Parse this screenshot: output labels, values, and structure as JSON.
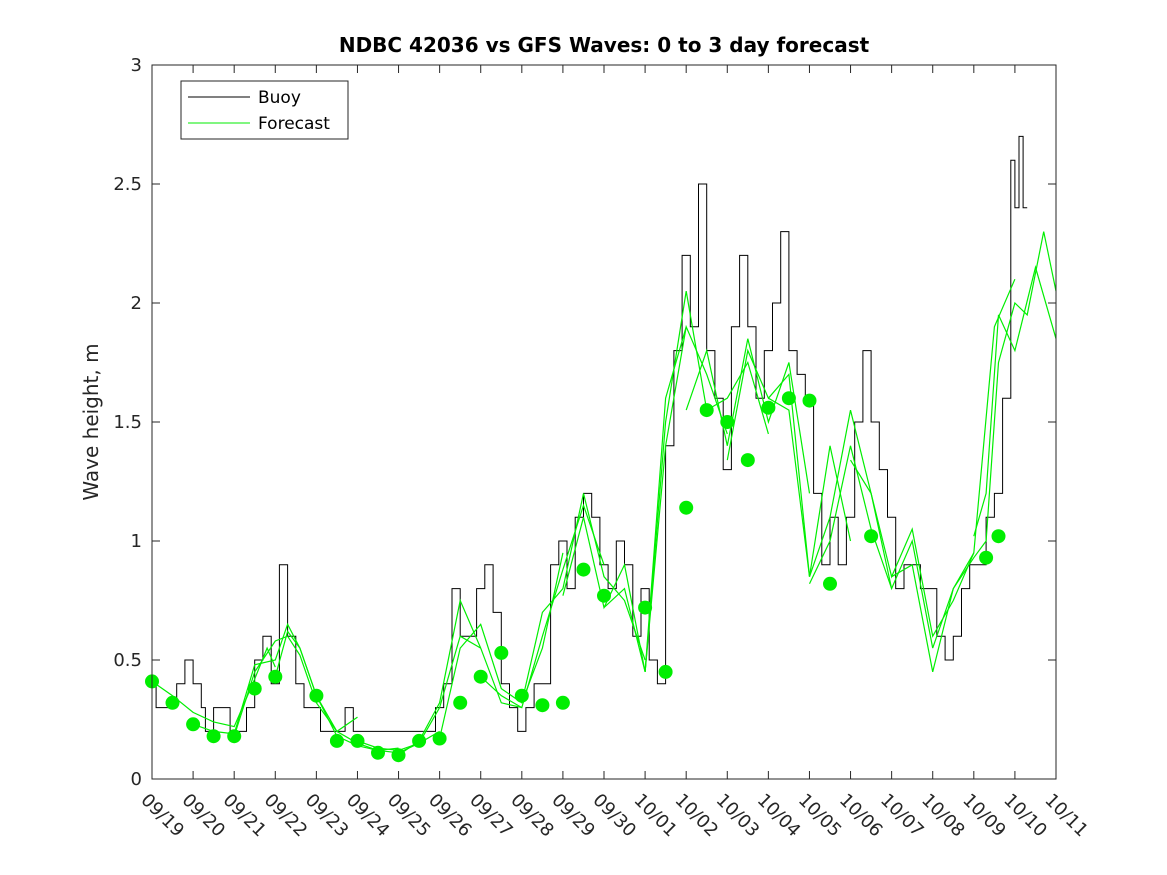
{
  "chart_data": {
    "type": "line",
    "title": "NDBC 42036 vs GFS Waves: 0 to 3 day forecast",
    "xlabel": "",
    "ylabel": "Wave height, m",
    "ylim": [
      0,
      3
    ],
    "yticks": [
      "0",
      "0.5",
      "1",
      "1.5",
      "2",
      "2.5",
      "3"
    ],
    "xlim_days": [
      0,
      22
    ],
    "xticks": [
      "09/19",
      "09/20",
      "09/21",
      "09/22",
      "09/23",
      "09/24",
      "09/25",
      "09/26",
      "09/27",
      "09/28",
      "09/29",
      "09/30",
      "10/01",
      "10/02",
      "10/03",
      "10/04",
      "10/05",
      "10/06",
      "10/07",
      "10/08",
      "10/09",
      "10/10",
      "10/11"
    ],
    "legend": {
      "position": "top-left",
      "buoy_label": "Buoy",
      "forecast_label": "Forecast"
    },
    "colors": {
      "buoy": "#000000",
      "forecast": "#00ee00",
      "analysis_marker": "#00ee00"
    },
    "buoy_series": {
      "name": "Buoy",
      "x": [
        0,
        0.1,
        0.4,
        0.6,
        0.8,
        1.0,
        1.2,
        1.3,
        1.5,
        1.7,
        1.9,
        2.1,
        2.3,
        2.5,
        2.7,
        2.9,
        3.1,
        3.3,
        3.5,
        3.7,
        3.9,
        4.1,
        4.3,
        4.5,
        4.7,
        4.9,
        5.1,
        5.3,
        5.5,
        5.7,
        5.9,
        6.1,
        6.3,
        6.5,
        6.7,
        6.9,
        7.1,
        7.3,
        7.5,
        7.7,
        7.9,
        8.1,
        8.3,
        8.5,
        8.7,
        8.9,
        9.1,
        9.3,
        9.5,
        9.7,
        9.9,
        10.1,
        10.3,
        10.5,
        10.7,
        10.9,
        11.1,
        11.3,
        11.5,
        11.7,
        11.9,
        12.1,
        12.3,
        12.5,
        12.7,
        12.9,
        13.1,
        13.3,
        13.5,
        13.7,
        13.9,
        14.1,
        14.3,
        14.5,
        14.7,
        14.9,
        15.1,
        15.3,
        15.5,
        15.7,
        15.9,
        16.1,
        16.3,
        16.5,
        16.7,
        16.9,
        17.1,
        17.3,
        17.5,
        17.7,
        17.9,
        18.1,
        18.3,
        18.5,
        18.7,
        18.9,
        19.1,
        19.3,
        19.5,
        19.7,
        19.9,
        20.1,
        20.3,
        20.5,
        20.7,
        20.9,
        21.0,
        21.1,
        21.2,
        21.3
      ],
      "values": [
        0.4,
        0.3,
        0.3,
        0.4,
        0.5,
        0.4,
        0.3,
        0.2,
        0.3,
        0.3,
        0.2,
        0.2,
        0.3,
        0.5,
        0.6,
        0.4,
        0.9,
        0.6,
        0.4,
        0.3,
        0.3,
        0.2,
        0.2,
        0.2,
        0.3,
        0.2,
        0.2,
        0.2,
        0.2,
        0.2,
        0.2,
        0.2,
        0.2,
        0.2,
        0.2,
        0.3,
        0.4,
        0.8,
        0.6,
        0.6,
        0.8,
        0.9,
        0.7,
        0.4,
        0.3,
        0.2,
        0.3,
        0.4,
        0.4,
        0.9,
        1.0,
        0.8,
        1.1,
        1.2,
        1.1,
        0.9,
        0.8,
        1.0,
        0.9,
        0.6,
        0.8,
        0.5,
        0.4,
        1.4,
        1.8,
        2.2,
        1.9,
        2.5,
        1.8,
        1.6,
        1.3,
        1.9,
        2.2,
        1.9,
        1.6,
        1.8,
        2.0,
        2.3,
        1.8,
        1.7,
        1.6,
        1.2,
        0.9,
        1.1,
        0.9,
        1.1,
        1.5,
        1.8,
        1.5,
        1.3,
        1.1,
        0.8,
        0.9,
        0.9,
        0.8,
        0.8,
        0.6,
        0.5,
        0.6,
        0.8,
        0.9,
        0.9,
        1.1,
        1.2,
        1.6,
        2.6,
        2.4,
        2.7,
        2.4,
        2.4
      ]
    },
    "forecast_series": [
      {
        "name": "Forecast 1",
        "x": [
          0,
          0.5,
          1.0,
          1.5,
          2.0,
          2.5,
          2.8,
          3.0
        ],
        "values": [
          0.41,
          0.35,
          0.28,
          0.24,
          0.22,
          0.42,
          0.55,
          0.47
        ]
      },
      {
        "name": "Forecast 2",
        "x": [
          1.0,
          1.5,
          2.0,
          2.5,
          3.0,
          3.3,
          3.6,
          4.0
        ],
        "values": [
          0.23,
          0.2,
          0.19,
          0.48,
          0.5,
          0.65,
          0.55,
          0.35
        ]
      },
      {
        "name": "Forecast 3",
        "x": [
          2.0,
          2.5,
          3.0,
          3.3,
          3.6,
          4.0,
          4.5,
          5.0
        ],
        "values": [
          0.18,
          0.45,
          0.58,
          0.6,
          0.52,
          0.32,
          0.2,
          0.26
        ]
      },
      {
        "name": "Forecast 4",
        "x": [
          3.0,
          3.3,
          3.6,
          4.0,
          4.5,
          5.0,
          5.5,
          6.0
        ],
        "values": [
          0.43,
          0.62,
          0.55,
          0.35,
          0.18,
          0.14,
          0.12,
          0.13
        ]
      },
      {
        "name": "Forecast 5",
        "x": [
          4.0,
          4.5,
          5.0,
          5.5,
          6.0,
          6.5,
          7.0
        ],
        "values": [
          0.35,
          0.2,
          0.15,
          0.12,
          0.11,
          0.15,
          0.2
        ]
      },
      {
        "name": "Forecast 6",
        "x": [
          5.0,
          5.5,
          6.0,
          6.5,
          7.0,
          7.5,
          8.0
        ],
        "values": [
          0.16,
          0.13,
          0.12,
          0.15,
          0.3,
          0.6,
          0.55
        ]
      },
      {
        "name": "Forecast 7",
        "x": [
          6.0,
          6.5,
          7.0,
          7.5,
          8.0,
          8.5,
          9.0
        ],
        "values": [
          0.1,
          0.16,
          0.32,
          0.75,
          0.55,
          0.32,
          0.3
        ]
      },
      {
        "name": "Forecast 8",
        "x": [
          7.0,
          7.5,
          8.0,
          8.5,
          9.0,
          9.5,
          10.0
        ],
        "values": [
          0.17,
          0.55,
          0.65,
          0.38,
          0.32,
          0.55,
          0.95
        ]
      },
      {
        "name": "Forecast 9",
        "x": [
          8.0,
          8.5,
          9.0,
          9.5,
          10.0,
          10.5,
          11.0
        ],
        "values": [
          0.43,
          0.35,
          0.3,
          0.6,
          0.88,
          1.15,
          0.9
        ]
      },
      {
        "name": "Forecast 10",
        "x": [
          9.0,
          9.5,
          10.0,
          10.5,
          11.0,
          11.5,
          12.0
        ],
        "values": [
          0.32,
          0.7,
          0.8,
          1.2,
          0.85,
          0.75,
          0.5
        ]
      },
      {
        "name": "Forecast 11",
        "x": [
          10.0,
          10.5,
          11.0,
          11.5,
          12.0,
          12.5,
          13.0
        ],
        "values": [
          0.77,
          1.1,
          0.72,
          0.9,
          0.45,
          1.6,
          1.9
        ]
      },
      {
        "name": "Forecast 12",
        "x": [
          11.0,
          11.5,
          12.0,
          12.5,
          13.0,
          13.5,
          14.0
        ],
        "values": [
          0.72,
          0.8,
          0.45,
          1.4,
          1.9,
          1.7,
          1.45
        ]
      },
      {
        "name": "Forecast 13",
        "x": [
          12.0,
          12.5,
          13.0,
          13.5,
          14.0,
          14.5,
          15.0
        ],
        "values": [
          0.45,
          1.5,
          2.05,
          1.55,
          1.6,
          1.75,
          1.45
        ]
      },
      {
        "name": "Forecast 14",
        "x": [
          13.0,
          13.5,
          14.0,
          14.5,
          15.0,
          15.5,
          16.0
        ],
        "values": [
          1.55,
          1.8,
          1.4,
          1.85,
          1.5,
          1.75,
          1.2
        ]
      },
      {
        "name": "Forecast 15",
        "x": [
          14.0,
          14.5,
          15.0,
          15.5,
          16.0,
          16.5,
          17.0
        ],
        "values": [
          1.34,
          1.8,
          1.6,
          1.7,
          0.85,
          1.4,
          1.0
        ]
      },
      {
        "name": "Forecast 16",
        "x": [
          15.0,
          15.5,
          16.0,
          16.5,
          17.0,
          17.5,
          18.0
        ],
        "values": [
          1.6,
          1.55,
          0.85,
          1.1,
          1.55,
          1.2,
          0.8
        ]
      },
      {
        "name": "Forecast 17",
        "x": [
          16.0,
          16.5,
          17.0,
          17.5,
          18.0,
          18.5,
          19.0
        ],
        "values": [
          0.82,
          1.0,
          1.4,
          1.05,
          0.8,
          1.0,
          0.55
        ]
      },
      {
        "name": "Forecast 18",
        "x": [
          17.0,
          17.5,
          18.0,
          18.5,
          19.0,
          19.5,
          20.0
        ],
        "values": [
          1.34,
          1.2,
          0.85,
          1.05,
          0.6,
          0.75,
          0.95
        ]
      },
      {
        "name": "Forecast 19",
        "x": [
          18.0,
          18.5,
          19.0,
          19.5,
          20.0,
          20.5,
          21.0
        ],
        "values": [
          0.85,
          0.9,
          0.45,
          0.8,
          0.95,
          1.9,
          2.1
        ]
      },
      {
        "name": "Forecast 20",
        "x": [
          19.0,
          19.5,
          20.0,
          20.3,
          20.6,
          21.0,
          21.3,
          21.7,
          22.0
        ],
        "values": [
          0.55,
          0.8,
          0.93,
          1.0,
          1.75,
          2.0,
          1.95,
          2.3,
          2.05
        ]
      },
      {
        "name": "Forecast 21",
        "x": [
          20.0,
          20.3,
          20.6,
          21.0,
          21.5,
          22.0
        ],
        "values": [
          1.02,
          1.2,
          1.95,
          1.8,
          2.15,
          1.85
        ]
      }
    ],
    "analysis_points": {
      "x": [
        0,
        0.5,
        1.0,
        1.5,
        2.0,
        2.5,
        3.0,
        4.0,
        4.5,
        5.0,
        5.5,
        6.0,
        6.5,
        7.0,
        7.5,
        8.0,
        8.5,
        9.0,
        9.5,
        10.0,
        10.5,
        11.0,
        12.0,
        12.5,
        13.0,
        13.5,
        14.0,
        14.5,
        15.0,
        15.5,
        16.0,
        16.5,
        17.5,
        20.3,
        20.6
      ],
      "values": [
        0.41,
        0.32,
        0.23,
        0.18,
        0.18,
        0.38,
        0.43,
        0.35,
        0.16,
        0.16,
        0.11,
        0.1,
        0.16,
        0.17,
        0.32,
        0.43,
        0.53,
        0.35,
        0.31,
        0.32,
        0.88,
        0.77,
        0.72,
        0.45,
        1.14,
        1.55,
        1.5,
        1.34,
        1.56,
        1.6,
        1.59,
        0.82,
        1.02,
        0.93,
        1.02
      ]
    }
  }
}
